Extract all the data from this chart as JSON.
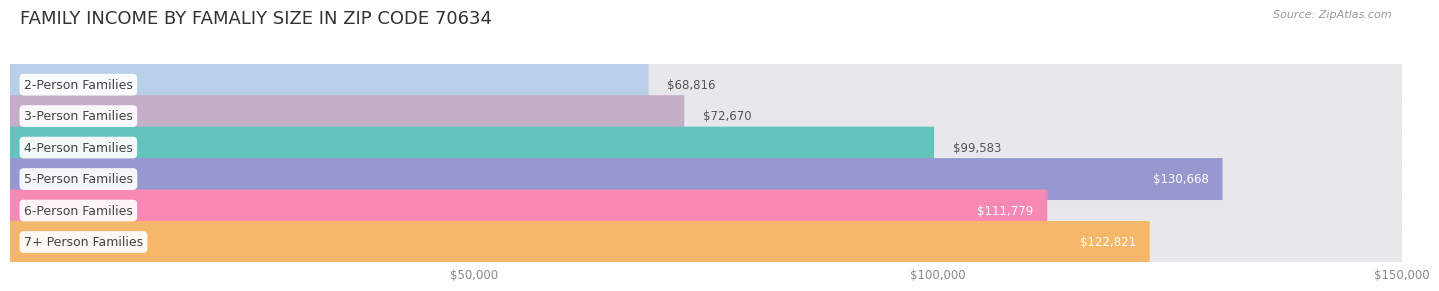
{
  "title": "FAMILY INCOME BY FAMALIY SIZE IN ZIP CODE 70634",
  "source": "Source: ZipAtlas.com",
  "categories": [
    "2-Person Families",
    "3-Person Families",
    "4-Person Families",
    "5-Person Families",
    "6-Person Families",
    "7+ Person Families"
  ],
  "values": [
    68816,
    72670,
    99583,
    130668,
    111779,
    122821
  ],
  "value_labels": [
    "$68,816",
    "$72,670",
    "$99,583",
    "$130,668",
    "$111,779",
    "$122,821"
  ],
  "bar_colors": [
    "#b8cfe8",
    "#c5afc8",
    "#62c4bc",
    "#9898d0",
    "#f888b4",
    "#f5b86a"
  ],
  "bar_bg_color": "#e8e8ec",
  "xlim_max": 150000,
  "xticks": [
    50000,
    100000,
    150000
  ],
  "xtick_labels": [
    "$50,000",
    "$100,000",
    "$150,000"
  ],
  "title_fontsize": 13,
  "label_fontsize": 9,
  "value_fontsize": 8.5,
  "bar_height": 0.68,
  "background_color": "#ffffff",
  "grid_color": "#d0d0d8",
  "value_inside_threshold": 110000
}
